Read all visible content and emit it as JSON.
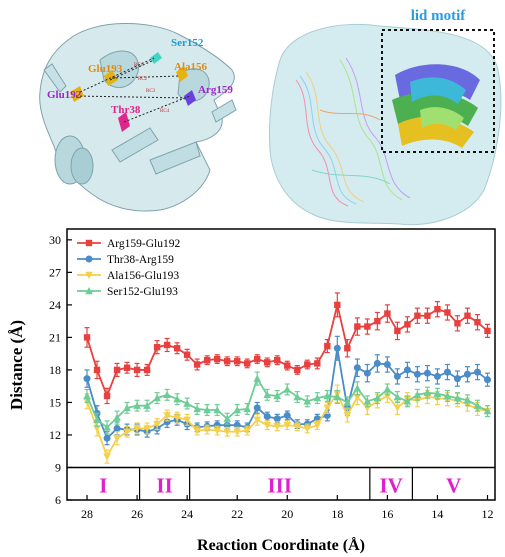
{
  "top_panels": {
    "left_labels": {
      "ser152": "Ser152",
      "ala156": "Ala156",
      "glu193": "Glu193",
      "glu192": "Glu192",
      "arg159": "Arg159",
      "thr38": "Thr38",
      "rc1": "RC1",
      "rc2": "RC2",
      "rc3": "RC3",
      "rc4": "RC4"
    },
    "right_label": "lid motif"
  },
  "colors": {
    "arg159_glu192": "#e8403f",
    "thr38_arg159": "#4a8cc8",
    "ala156_glu193": "#f5d04a",
    "ser152_glu193": "#6dcd96",
    "stage_label": "#e020d0",
    "lid_label": "#2b9be0",
    "ser_label": "#1a9bd6",
    "ala_label": "#e08a10",
    "glu_label": "#9b27c8",
    "thr_label": "#e0258c"
  },
  "chart_data": {
    "type": "line",
    "xlabel": "Reaction Coordinate (Å)",
    "ylabel": "Distance (Å)",
    "xlim": [
      28.8,
      11.7
    ],
    "ylim": [
      6,
      31
    ],
    "xticks": [
      28,
      26,
      24,
      22,
      20,
      18,
      16,
      14,
      12
    ],
    "yticks": [
      6,
      9,
      12,
      15,
      18,
      21,
      24,
      27,
      30
    ],
    "legend_position": "top-left",
    "x": [
      28.0,
      27.6,
      27.2,
      26.8,
      26.4,
      26.0,
      25.6,
      25.2,
      24.8,
      24.4,
      24.0,
      23.6,
      23.2,
      22.8,
      22.4,
      22.0,
      21.6,
      21.2,
      20.8,
      20.4,
      20.0,
      19.6,
      19.2,
      18.8,
      18.4,
      18.0,
      17.6,
      17.2,
      16.8,
      16.4,
      16.0,
      15.6,
      15.2,
      14.8,
      14.4,
      14.0,
      13.6,
      13.2,
      12.8,
      12.4,
      12.0
    ],
    "series": [
      {
        "name": "Arg159-Glu192",
        "color": "#e8403f",
        "marker": "square",
        "values": [
          21.0,
          18.0,
          15.6,
          18.0,
          18.2,
          18.0,
          18.0,
          20.1,
          20.3,
          20.0,
          19.4,
          18.5,
          18.9,
          19.0,
          18.8,
          18.8,
          18.6,
          19.0,
          18.7,
          18.9,
          18.4,
          18.0,
          18.5,
          18.6,
          20.2,
          24.0,
          20.0,
          22.0,
          22.0,
          22.5,
          23.2,
          21.6,
          22.2,
          23.0,
          23.0,
          23.6,
          23.3,
          22.3,
          23.0,
          22.4,
          21.6
        ],
        "errors": [
          0.9,
          0.8,
          0.7,
          0.6,
          0.5,
          0.6,
          0.5,
          0.6,
          0.6,
          0.5,
          0.5,
          0.5,
          0.4,
          0.4,
          0.4,
          0.4,
          0.4,
          0.4,
          0.4,
          0.4,
          0.4,
          0.4,
          0.4,
          0.5,
          0.6,
          1.1,
          0.8,
          0.8,
          0.7,
          0.8,
          0.8,
          0.8,
          0.7,
          0.7,
          0.7,
          0.7,
          0.7,
          0.7,
          0.7,
          0.7,
          0.6
        ]
      },
      {
        "name": "Thr38-Arg159",
        "color": "#4a8cc8",
        "marker": "circle",
        "values": [
          17.2,
          14.0,
          11.7,
          12.6,
          12.5,
          12.5,
          12.3,
          12.6,
          13.2,
          13.4,
          13.0,
          12.7,
          12.8,
          12.9,
          12.9,
          12.9,
          12.7,
          14.5,
          13.7,
          13.5,
          13.8,
          13.0,
          13.0,
          13.5,
          13.8,
          20.0,
          14.5,
          18.2,
          17.7,
          18.6,
          18.5,
          17.4,
          18.0,
          17.6,
          17.7,
          17.4,
          17.8,
          17.2,
          17.6,
          17.8,
          17.1
        ],
        "errors": [
          0.8,
          0.7,
          0.6,
          0.6,
          0.5,
          0.5,
          0.5,
          0.5,
          0.5,
          0.5,
          0.5,
          0.4,
          0.4,
          0.4,
          0.4,
          0.4,
          0.4,
          0.5,
          0.4,
          0.4,
          0.4,
          0.4,
          0.4,
          0.4,
          0.5,
          1.1,
          0.7,
          0.8,
          0.8,
          0.8,
          0.7,
          0.7,
          0.7,
          0.7,
          0.7,
          0.7,
          0.7,
          0.7,
          0.7,
          0.7,
          0.6
        ]
      },
      {
        "name": "Ala156-Glu193",
        "color": "#f5d04a",
        "marker": "triangle-down",
        "values": [
          15.1,
          12.6,
          10.0,
          11.7,
          12.3,
          12.6,
          12.6,
          13.0,
          13.8,
          13.6,
          13.4,
          12.4,
          12.5,
          12.4,
          12.3,
          12.3,
          12.4,
          13.4,
          12.9,
          12.8,
          12.9,
          12.8,
          12.6,
          12.9,
          14.5,
          15.8,
          13.8,
          15.5,
          14.5,
          15.1,
          15.6,
          14.5,
          15.3,
          15.2,
          15.5,
          15.4,
          15.3,
          15.2,
          14.8,
          14.4,
          14.2
        ],
        "errors": [
          0.7,
          0.7,
          0.6,
          0.6,
          0.5,
          0.5,
          0.5,
          0.5,
          0.5,
          0.5,
          0.5,
          0.4,
          0.4,
          0.4,
          0.4,
          0.4,
          0.4,
          0.5,
          0.4,
          0.4,
          0.4,
          0.4,
          0.4,
          0.4,
          0.5,
          0.8,
          0.6,
          0.7,
          0.6,
          0.6,
          0.6,
          0.6,
          0.6,
          0.6,
          0.6,
          0.6,
          0.6,
          0.6,
          0.6,
          0.6,
          0.5
        ]
      },
      {
        "name": "Ser152-Glu193",
        "color": "#6dcd96",
        "marker": "triangle-up",
        "values": [
          15.6,
          13.4,
          12.7,
          13.6,
          14.5,
          14.7,
          14.7,
          15.4,
          15.7,
          15.3,
          14.9,
          14.4,
          14.3,
          14.3,
          13.5,
          14.3,
          14.4,
          17.2,
          15.7,
          15.6,
          16.2,
          15.5,
          15.1,
          15.4,
          15.6,
          15.5,
          15.0,
          16.3,
          15.1,
          15.4,
          16.2,
          15.5,
          15.1,
          15.7,
          15.9,
          15.8,
          15.6,
          15.4,
          15.2,
          14.7,
          14.2
        ],
        "errors": [
          0.6,
          0.6,
          0.6,
          0.6,
          0.5,
          0.5,
          0.5,
          0.5,
          0.5,
          0.5,
          0.5,
          0.5,
          0.5,
          0.5,
          0.5,
          0.5,
          0.5,
          0.6,
          0.5,
          0.5,
          0.5,
          0.5,
          0.5,
          0.5,
          0.5,
          0.6,
          0.5,
          0.6,
          0.5,
          0.5,
          0.5,
          0.5,
          0.5,
          0.5,
          0.5,
          0.5,
          0.5,
          0.5,
          0.5,
          0.5,
          0.5
        ]
      }
    ],
    "stage_boundary_y": 9,
    "stages": [
      {
        "label": "I",
        "from": 28.8,
        "to": 25.9
      },
      {
        "label": "II",
        "from": 25.9,
        "to": 23.9
      },
      {
        "label": "III",
        "from": 23.9,
        "to": 16.7
      },
      {
        "label": "IV",
        "from": 16.7,
        "to": 15.0
      },
      {
        "label": "V",
        "from": 15.0,
        "to": 11.7
      }
    ]
  }
}
